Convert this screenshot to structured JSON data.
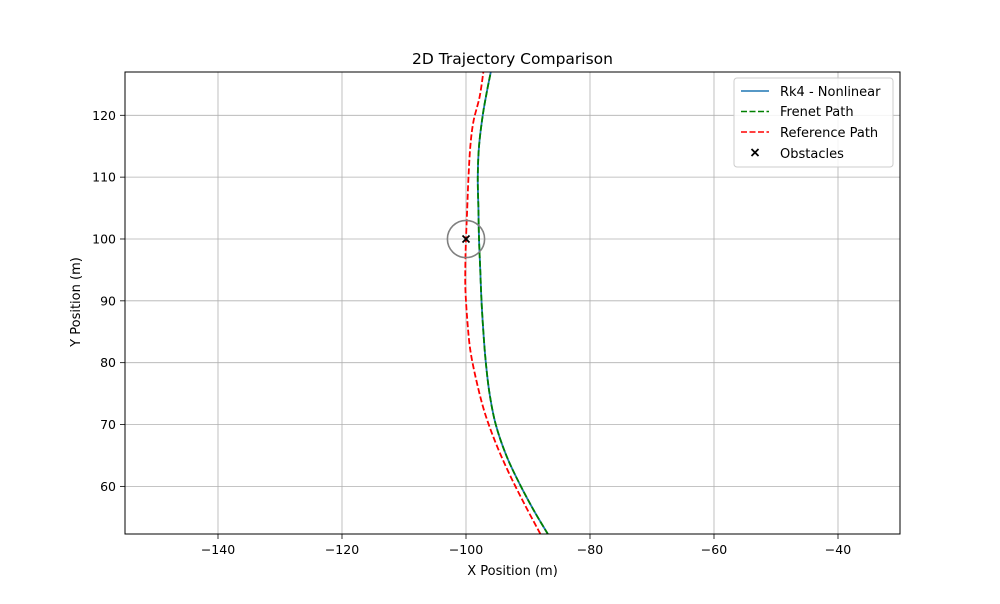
{
  "chart_data": {
    "type": "line",
    "title": "2D Trajectory Comparison",
    "xlabel": "X Position (m)",
    "ylabel": "Y Position (m)",
    "xlim": [
      -155,
      -30
    ],
    "ylim": [
      52.3,
      127
    ],
    "xticks": [
      -140,
      -120,
      -100,
      -80,
      -60,
      -40
    ],
    "yticks": [
      60,
      70,
      80,
      90,
      100,
      110,
      120
    ],
    "xtick_labels": [
      "−140",
      "−120",
      "−100",
      "−80",
      "−60",
      "−40"
    ],
    "ytick_labels": [
      "60",
      "70",
      "80",
      "90",
      "100",
      "110",
      "120"
    ],
    "grid": true,
    "legend_position": "top-right",
    "series": [
      {
        "name": "Rk4 - Nonlinear",
        "color": "#1f77b4",
        "style": "solid",
        "points": [
          [
            -86.8,
            52.3
          ],
          [
            -89.0,
            56.0
          ],
          [
            -91.4,
            60.5
          ],
          [
            -93.5,
            65.0
          ],
          [
            -95.2,
            70.0
          ],
          [
            -96.2,
            75.0
          ],
          [
            -96.8,
            80.0
          ],
          [
            -97.2,
            85.0
          ],
          [
            -97.5,
            90.0
          ],
          [
            -97.7,
            95.0
          ],
          [
            -97.9,
            100.0
          ],
          [
            -98.0,
            105.0
          ],
          [
            -98.1,
            110.0
          ],
          [
            -97.9,
            115.0
          ],
          [
            -97.3,
            120.0
          ],
          [
            -96.6,
            124.0
          ],
          [
            -96.0,
            127.0
          ]
        ]
      },
      {
        "name": "Frenet Path",
        "color": "#008000",
        "style": "dashed",
        "points": [
          [
            -86.8,
            52.3
          ],
          [
            -89.0,
            56.0
          ],
          [
            -91.4,
            60.5
          ],
          [
            -93.5,
            65.0
          ],
          [
            -95.2,
            70.0
          ],
          [
            -96.2,
            75.0
          ],
          [
            -96.8,
            80.0
          ],
          [
            -97.2,
            85.0
          ],
          [
            -97.5,
            90.0
          ],
          [
            -97.7,
            95.0
          ],
          [
            -97.9,
            100.0
          ],
          [
            -98.0,
            105.0
          ],
          [
            -98.1,
            110.0
          ],
          [
            -97.9,
            115.0
          ],
          [
            -97.3,
            120.0
          ],
          [
            -96.6,
            124.0
          ],
          [
            -96.0,
            127.0
          ]
        ]
      },
      {
        "name": "Reference Path",
        "color": "#ff0000",
        "style": "dashed",
        "points": [
          [
            -88.0,
            52.3
          ],
          [
            -90.5,
            57.0
          ],
          [
            -93.0,
            62.0
          ],
          [
            -95.2,
            67.0
          ],
          [
            -97.0,
            72.0
          ],
          [
            -98.3,
            77.0
          ],
          [
            -99.3,
            82.0
          ],
          [
            -99.8,
            87.0
          ],
          [
            -100.1,
            92.0
          ],
          [
            -100.1,
            96.0
          ],
          [
            -100.0,
            100.0
          ],
          [
            -99.8,
            105.0
          ],
          [
            -99.6,
            110.0
          ],
          [
            -99.3,
            115.0
          ],
          [
            -98.8,
            119.0
          ],
          [
            -97.8,
            123.0
          ],
          [
            -97.2,
            127.0
          ]
        ]
      }
    ],
    "obstacles": {
      "name": "Obstacles",
      "points": [
        [
          -100.0,
          100.0
        ]
      ],
      "radius": 3.0
    }
  }
}
